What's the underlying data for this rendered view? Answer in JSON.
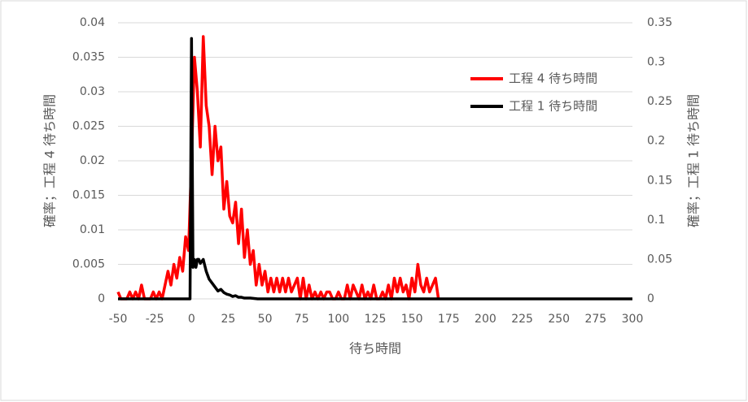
{
  "chart_data": {
    "type": "line",
    "xlabel": "待ち時間",
    "ylabel": "確率；工程 4 待ち時間",
    "y2label": "確率；工程 1 待ち時間",
    "xlim": [
      -50,
      300
    ],
    "xticks": [
      -50,
      -25,
      0,
      25,
      50,
      75,
      100,
      125,
      150,
      175,
      200,
      225,
      250,
      275,
      300
    ],
    "ylim": [
      0,
      0.04
    ],
    "yticks": [
      0,
      0.005,
      0.01,
      0.015,
      0.02,
      0.025,
      0.03,
      0.035,
      0.04
    ],
    "y2lim": [
      0,
      0.35
    ],
    "y2ticks": [
      0,
      0.05,
      0.1,
      0.15,
      0.2,
      0.25,
      0.3,
      0.35
    ],
    "grid": true,
    "legend": "upper right",
    "series": [
      {
        "name": "工程 4 待ち時間",
        "color": "#ff0000",
        "axis": "y",
        "x": [
          -50,
          -48,
          -46,
          -44,
          -42,
          -40,
          -38,
          -36,
          -34,
          -32,
          -30,
          -28,
          -26,
          -24,
          -22,
          -20,
          -18,
          -16,
          -14,
          -12,
          -10,
          -8,
          -6,
          -4,
          -2,
          0,
          2,
          4,
          6,
          8,
          10,
          12,
          14,
          16,
          18,
          20,
          22,
          24,
          26,
          28,
          30,
          32,
          34,
          36,
          38,
          40,
          42,
          44,
          46,
          48,
          50,
          52,
          54,
          56,
          58,
          60,
          62,
          64,
          66,
          68,
          70,
          72,
          74,
          76,
          78,
          80,
          82,
          84,
          86,
          88,
          90,
          92,
          94,
          96,
          98,
          100,
          102,
          104,
          106,
          108,
          110,
          112,
          114,
          116,
          118,
          120,
          122,
          124,
          126,
          128,
          130,
          132,
          134,
          136,
          138,
          140,
          142,
          144,
          146,
          148,
          150,
          152,
          154,
          156,
          158,
          160,
          162,
          164,
          166,
          168
        ],
        "values": [
          0.001,
          0,
          0,
          0,
          0.001,
          0,
          0.001,
          0,
          0.002,
          0,
          0,
          0,
          0.001,
          0,
          0.001,
          0,
          0.002,
          0.004,
          0.002,
          0.005,
          0.003,
          0.006,
          0.004,
          0.009,
          0.007,
          0.02,
          0.035,
          0.03,
          0.022,
          0.038,
          0.028,
          0.025,
          0.018,
          0.025,
          0.02,
          0.022,
          0.013,
          0.017,
          0.012,
          0.011,
          0.014,
          0.008,
          0.013,
          0.006,
          0.01,
          0.005,
          0.007,
          0.002,
          0.005,
          0.002,
          0.004,
          0.001,
          0.003,
          0.001,
          0.003,
          0.001,
          0.003,
          0.001,
          0.003,
          0.001,
          0.002,
          0.003,
          0,
          0.003,
          0,
          0.002,
          0,
          0.001,
          0,
          0.001,
          0,
          0.001,
          0.001,
          0,
          0,
          0.001,
          0,
          0,
          0.002,
          0,
          0.002,
          0.001,
          0,
          0.002,
          0,
          0.001,
          0,
          0.002,
          0,
          0,
          0.001,
          0,
          0.002,
          0,
          0.003,
          0.001,
          0.003,
          0.001,
          0.002,
          0,
          0.003,
          0.001,
          0.005,
          0.002,
          0.001,
          0.003,
          0.001,
          0.002,
          0.003,
          0
        ]
      },
      {
        "name": "工程 1 待ち時間",
        "color": "#000000",
        "axis": "y2",
        "x": [
          -50,
          -1,
          0,
          1,
          2,
          3,
          4,
          5,
          6,
          8,
          10,
          12,
          14,
          16,
          18,
          20,
          22,
          24,
          26,
          28,
          30,
          32,
          34,
          36,
          40,
          45,
          300
        ],
        "values": [
          0,
          0,
          0.33,
          0.04,
          0.05,
          0.04,
          0.05,
          0.05,
          0.045,
          0.05,
          0.035,
          0.025,
          0.02,
          0.015,
          0.01,
          0.012,
          0.008,
          0.006,
          0.005,
          0.003,
          0.004,
          0.002,
          0.002,
          0.001,
          0.001,
          0,
          0
        ]
      }
    ]
  }
}
